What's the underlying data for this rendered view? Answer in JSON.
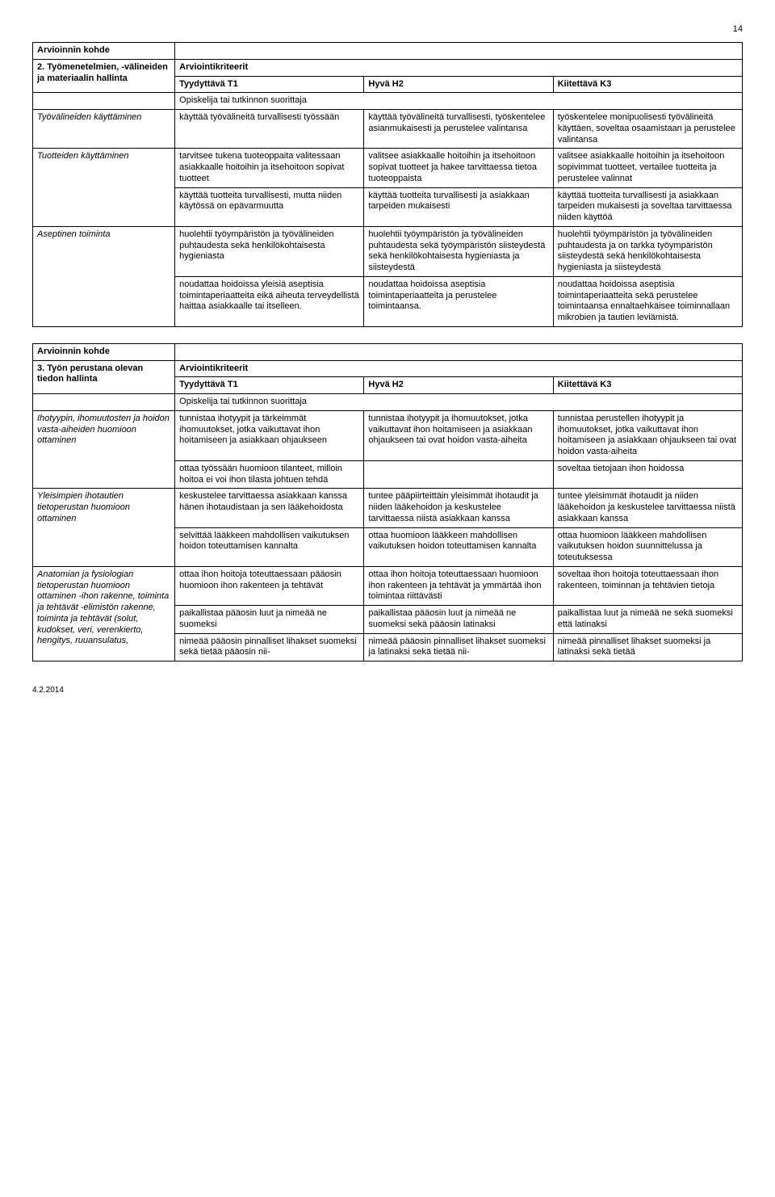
{
  "page_number": "14",
  "footer": "4.2.2014",
  "table1": {
    "heading_left": "Arvioinnin kohde",
    "row1_left": "2. Työmenetelmien, -välineiden ja materiaalin hallinta",
    "row1_criteria": "Arviointikriteerit",
    "col_t1": "Tyydyttävä T1",
    "col_h2": "Hyvä H2",
    "col_k3": "Kiitettävä K3",
    "span_text": "Opiskelija tai tutkinnon suorittaja",
    "r1": {
      "label": "Työvälineiden käyttäminen",
      "c1": "käyttää työvälineitä turvallisesti työssään",
      "c2": "käyttää työvälineitä turvallisesti, työskentelee asianmukaisesti ja perustelee valintansa",
      "c3": "työskentelee monipuolisesti työvälineitä käyttäen, soveltaa osaamistaan ja perustelee valintansa"
    },
    "r2": {
      "label": "Tuotteiden käyttäminen",
      "c1": "tarvitsee tukena tuoteoppaita valitessaan asiakkaalle hoitoihin ja itsehoitoon sopivat tuotteet",
      "c2": "valitsee asiakkaalle hoitoihin ja itsehoitoon sopivat tuotteet ja hakee tarvittaessa tietoa tuoteoppaista",
      "c3": "valitsee asiakkaalle hoitoihin ja itsehoitoon sopivimmat tuotteet, vertailee tuotteita ja perustelee valinnat"
    },
    "r2b": {
      "c1": "käyttää tuotteita turvallisesti, mutta niiden käytössä on epävarmuutta",
      "c2": "käyttää tuotteita turvallisesti ja asiakkaan tarpeiden mukaisesti",
      "c3": "käyttää tuotteita turvallisesti ja asiakkaan tarpeiden mukaisesti ja soveltaa tarvittaessa niiden käyttöä"
    },
    "r3": {
      "label": "Aseptinen toiminta",
      "c1": "huolehtii työympäristön ja työvälineiden puhtaudesta sekä henkilökohtaisesta hygieniasta",
      "c2": "huolehtii työympäristön ja työvälineiden puhtaudesta sekä työympäristön siisteydestä sekä henkilökohtaisesta hygieniasta ja siisteydestä",
      "c3": "huolehtii työympäristön ja työvälineiden puhtaudesta ja on tarkka työympäristön siisteydestä sekä henkilökohtaisesta hygieniasta ja siisteydestä"
    },
    "r3b": {
      "c1": "noudattaa hoidoissa yleisiä aseptisia toimintaperiaatteita eikä aiheuta terveydellistä haittaa asiakkaalle tai itselleen.",
      "c2": "noudattaa hoidoissa aseptisia toimintaperiaatteita ja perustelee toimintaansa.",
      "c3": "noudattaa hoidoissa aseptisia toimintaperiaatteita sekä perustelee toimintaansa ennaltaehkäisee toiminnallaan mikrobien ja tautien leviämistä."
    }
  },
  "table2": {
    "heading_left": "Arvioinnin kohde",
    "row1_left": "3. Työn perustana olevan tiedon hallinta",
    "row1_criteria": "Arviointikriteerit",
    "col_t1": "Tyydyttävä T1",
    "col_h2": "Hyvä H2",
    "col_k3": "Kiitettävä K3",
    "span_text": "Opiskelija tai tutkinnon suorittaja",
    "r1": {
      "label": "Ihotyypin, ihomuutosten ja hoidon vasta-aiheiden huomioon ottaminen",
      "c1": "tunnistaa ihotyypit ja tärkeimmät ihomuutokset, jotka vaikuttavat ihon hoitamiseen ja asiakkaan ohjaukseen",
      "c2": "tunnistaa ihotyypit ja ihomuutokset, jotka vaikuttavat ihon hoitamiseen ja asiakkaan ohjaukseen tai ovat hoidon vasta-aiheita",
      "c3": "tunnistaa perustellen ihotyypit ja ihomuutokset, jotka vaikuttavat ihon hoitamiseen ja asiakkaan ohjaukseen tai ovat hoidon vasta-aiheita"
    },
    "r1b": {
      "c1": "ottaa työssään huomioon tilanteet, milloin hoitoa ei voi ihon tilasta johtuen tehdä",
      "c2": "",
      "c3": "soveltaa tietojaan ihon hoidossa"
    },
    "r2": {
      "label": "Yleisimpien ihotautien tietoperustan huomioon ottaminen",
      "c1": "keskustelee tarvittaessa asiakkaan kanssa hänen ihotaudistaan ja sen lääkehoidosta",
      "c2": "tuntee pääpiirteittäin yleisimmät ihotaudit ja niiden lääkehoidon ja keskustelee tarvittaessa niistä asiakkaan kanssa",
      "c3": "tuntee yleisimmät ihotaudit ja niiden lääkehoidon ja keskustelee tarvittaessa niistä asiakkaan kanssa"
    },
    "r2b": {
      "c1": "selvittää lääkkeen mahdollisen vaikutuksen hoidon toteuttamisen kannalta",
      "c2": "ottaa huomioon lääkkeen mahdollisen vaikutuksen hoidon toteuttamisen kannalta",
      "c3": "ottaa huomioon lääkkeen mahdollisen vaikutuksen hoidon suunnittelussa ja toteutuksessa"
    },
    "r3": {
      "label": "Anatomian ja fysiologian tietoperustan huomioon ottaminen -ihon rakenne, toiminta ja tehtävät -elimistön rakenne, toiminta ja tehtävät (solut, kudokset, veri, verenkierto, hengitys, ruuansulatus,",
      "c1": "ottaa ihon hoitoja toteuttaessaan pääosin huomioon ihon rakenteen ja tehtävät",
      "c2": "ottaa ihon hoitoja toteuttaessaan huomioon ihon rakenteen ja tehtävät ja ymmärtää ihon toimintaa riittävästi",
      "c3": "soveltaa ihon hoitoja toteuttaessaan ihon rakenteen, toiminnan ja tehtävien tietoja"
    },
    "r3b": {
      "c1": "paikallistaa pääosin luut ja nimeää ne suomeksi",
      "c2": "paikallistaa pääosin luut ja nimeää ne suomeksi sekä pääosin latinaksi",
      "c3": "paikallistaa luut ja nimeää ne sekä suomeksi että latinaksi"
    },
    "r3c": {
      "c1": "nimeää pääosin pinnalliset lihakset suomeksi sekä tietää pääosin nii-",
      "c2": "nimeää pääosin pinnalliset lihakset suomeksi ja latinaksi sekä tietää nii-",
      "c3": "nimeää pinnalliset lihakset suomeksi ja latinaksi sekä tietää"
    }
  }
}
